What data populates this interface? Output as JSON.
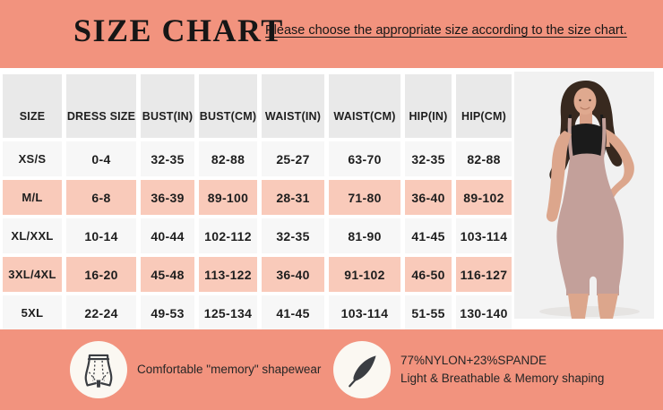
{
  "header": {
    "title": "SIZE CHART",
    "subtitle": "Please choose the appropriate size according to the size chart."
  },
  "table": {
    "columns": [
      "SIZE",
      "DRESS SIZE",
      "BUST(IN)",
      "BUST(CM)",
      "WAIST(IN)",
      "WAIST(CM)",
      "HIP(IN)",
      "HIP(CM)"
    ],
    "rows": [
      {
        "size": "XS/S",
        "values": [
          "0-4",
          "32-35",
          "82-88",
          "25-27",
          "63-70",
          "32-35",
          "82-88"
        ],
        "highlighted": false
      },
      {
        "size": "M/L",
        "values": [
          "6-8",
          "36-39",
          "89-100",
          "28-31",
          "71-80",
          "36-40",
          "89-102"
        ],
        "highlighted": true
      },
      {
        "size": "XL/XXL",
        "values": [
          "10-14",
          "40-44",
          "102-112",
          "32-35",
          "81-90",
          "41-45",
          "103-114"
        ],
        "highlighted": false
      },
      {
        "size": "3XL/4XL",
        "values": [
          "16-20",
          "45-48",
          "113-122",
          "36-40",
          "91-102",
          "46-50",
          "116-127"
        ],
        "highlighted": true
      },
      {
        "size": "5XL",
        "values": [
          "22-24",
          "49-53",
          "125-134",
          "41-45",
          "103-114",
          "51-55",
          "130-140"
        ],
        "highlighted": false
      }
    ]
  },
  "features": [
    {
      "icon": "shapewear-icon",
      "lines": [
        "Comfortable \"memory\" shapewear"
      ]
    },
    {
      "icon": "feather-icon",
      "lines": [
        "77%NYLON+23%SPANDE",
        "Light & Breathable & Memory shaping"
      ]
    }
  ],
  "colors": {
    "band": "#F2937E",
    "row_highlight": "#F9CABA",
    "header_cell": "#E9E9E9",
    "row_plain": "#F7F7F7",
    "icon_dark": "#3A3D42"
  }
}
